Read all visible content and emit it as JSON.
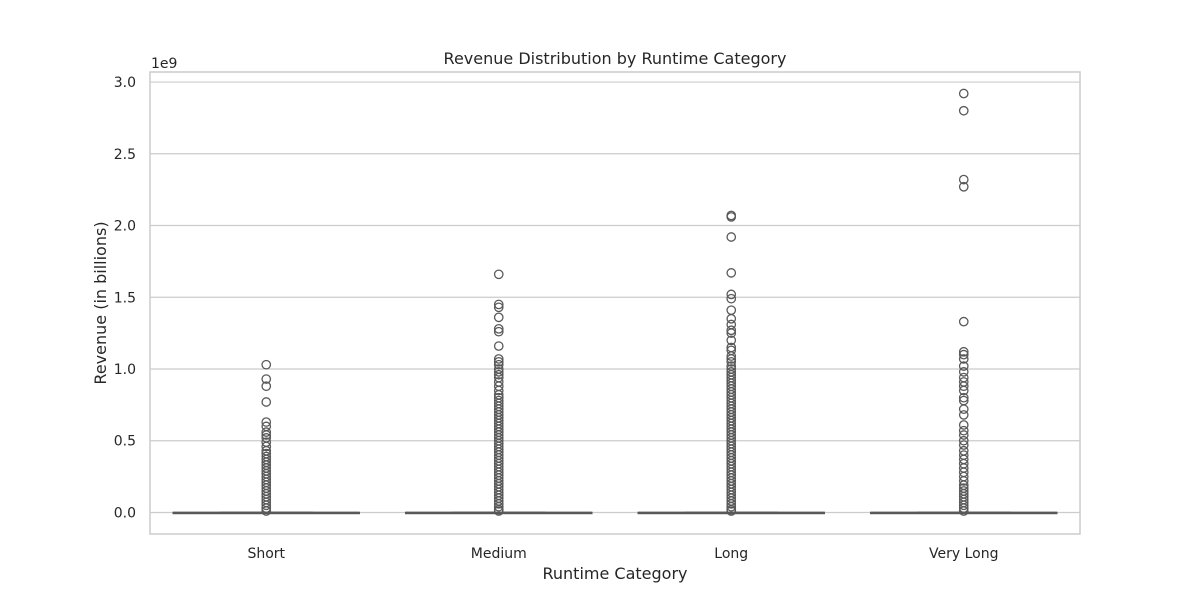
{
  "chart_data": {
    "type": "box",
    "title": "Revenue Distribution by Runtime Category",
    "xlabel": "Runtime Category",
    "ylabel": "Revenue (in billions)",
    "y_offset_label": "1e9",
    "categories": [
      "Short",
      "Medium",
      "Long",
      "Very Long"
    ],
    "ylim": [
      -0.15,
      3.07
    ],
    "yticks": [
      0.0,
      0.5,
      1.0,
      1.5,
      2.0,
      2.5,
      3.0
    ],
    "ytick_labels": [
      "0.0",
      "0.5",
      "1.0",
      "1.5",
      "2.0",
      "2.5",
      "3.0"
    ],
    "grid": true,
    "units_note": "values are revenue multiplied by 1e9",
    "boxes": [
      {
        "category": "Short",
        "q1": 0.0,
        "median": 0.0,
        "q3": 0.0,
        "whisker_low": 0.0,
        "whisker_high": 0.0,
        "outliers": [
          1.03,
          0.93,
          0.88,
          0.77,
          0.63,
          0.6,
          0.56,
          0.54,
          0.52,
          0.49,
          0.46,
          0.43,
          0.41,
          0.39,
          0.37,
          0.35,
          0.33,
          0.31,
          0.29,
          0.27,
          0.25,
          0.23,
          0.21,
          0.19,
          0.17,
          0.15,
          0.13,
          0.11,
          0.09,
          0.07,
          0.05,
          0.03,
          0.01
        ]
      },
      {
        "category": "Medium",
        "q1": 0.0,
        "median": 0.0,
        "q3": 0.0,
        "whisker_low": 0.0,
        "whisker_high": 0.0,
        "outliers": [
          1.66,
          1.45,
          1.43,
          1.36,
          1.28,
          1.26,
          1.16,
          1.07,
          1.05,
          1.03,
          1.0,
          0.98,
          0.96,
          0.94,
          0.91,
          0.88,
          0.85,
          0.82,
          0.8,
          0.78,
          0.76,
          0.74,
          0.72,
          0.7,
          0.68,
          0.66,
          0.64,
          0.62,
          0.6,
          0.58,
          0.56,
          0.54,
          0.52,
          0.5,
          0.48,
          0.46,
          0.44,
          0.42,
          0.4,
          0.38,
          0.36,
          0.34,
          0.32,
          0.3,
          0.28,
          0.26,
          0.24,
          0.22,
          0.2,
          0.18,
          0.16,
          0.14,
          0.12,
          0.1,
          0.08,
          0.06,
          0.04,
          0.02,
          0.01
        ]
      },
      {
        "category": "Long",
        "q1": 0.0,
        "median": 0.0,
        "q3": 0.0,
        "whisker_low": 0.0,
        "whisker_high": 0.0,
        "outliers": [
          2.07,
          2.06,
          1.92,
          1.67,
          1.52,
          1.49,
          1.41,
          1.35,
          1.31,
          1.27,
          1.25,
          1.2,
          1.15,
          1.13,
          1.09,
          1.07,
          1.05,
          1.02,
          1.0,
          0.98,
          0.96,
          0.94,
          0.92,
          0.9,
          0.88,
          0.86,
          0.84,
          0.82,
          0.8,
          0.78,
          0.76,
          0.74,
          0.72,
          0.7,
          0.68,
          0.66,
          0.64,
          0.62,
          0.6,
          0.58,
          0.56,
          0.54,
          0.52,
          0.5,
          0.48,
          0.46,
          0.44,
          0.42,
          0.4,
          0.38,
          0.36,
          0.34,
          0.32,
          0.3,
          0.28,
          0.26,
          0.24,
          0.22,
          0.2,
          0.18,
          0.16,
          0.14,
          0.12,
          0.1,
          0.08,
          0.06,
          0.04,
          0.02,
          0.01
        ]
      },
      {
        "category": "Very Long",
        "q1": 0.0,
        "median": 0.0,
        "q3": 0.0,
        "whisker_low": 0.0,
        "whisker_high": 0.0,
        "outliers": [
          2.92,
          2.8,
          2.32,
          2.27,
          1.33,
          1.12,
          1.1,
          1.07,
          1.02,
          0.98,
          0.94,
          0.91,
          0.88,
          0.85,
          0.8,
          0.78,
          0.72,
          0.68,
          0.61,
          0.57,
          0.54,
          0.5,
          0.47,
          0.43,
          0.4,
          0.37,
          0.34,
          0.31,
          0.28,
          0.25,
          0.22,
          0.19,
          0.17,
          0.15,
          0.13,
          0.11,
          0.09,
          0.07,
          0.05,
          0.03,
          0.01
        ]
      }
    ],
    "colors": {
      "box_line": "#595959",
      "grid": "#cccccc",
      "frame": "#cccccc",
      "text": "#262626"
    }
  }
}
